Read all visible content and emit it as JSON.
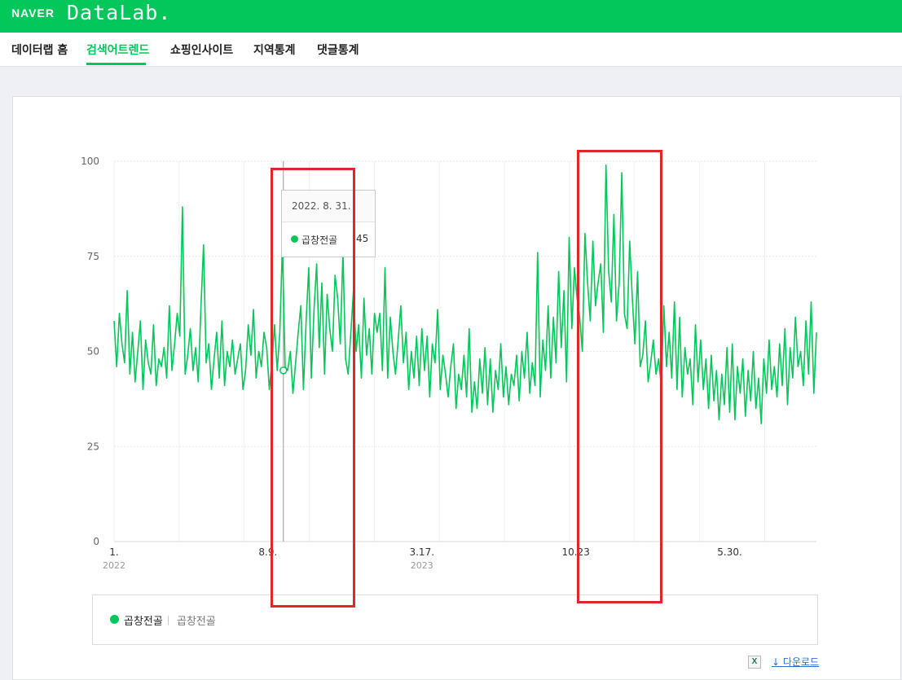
{
  "header": {
    "logo_naver": "NAVER",
    "logo_datalab": "DataLab."
  },
  "nav": {
    "items": [
      {
        "label": "데이터랩 홈"
      },
      {
        "label": "검색어트렌드"
      },
      {
        "label": "쇼핑인사이트"
      },
      {
        "label": "지역통계"
      },
      {
        "label": "댓글통계"
      }
    ],
    "active_index": 1
  },
  "tooltip": {
    "date": "2022. 8. 31.",
    "series": "곱창전골",
    "value": "45"
  },
  "legend": {
    "name": "곱창전골",
    "term": "곱창전골"
  },
  "download": {
    "label": "다운로드",
    "excel_glyph": "X"
  },
  "colors": {
    "brand": "#03c75a",
    "highlight": "#e0252b"
  },
  "chart_data": {
    "type": "line",
    "series": [
      {
        "name": "곱창전골",
        "x_start": "2022-01-01",
        "x_step_days": 7,
        "values": [
          58,
          46,
          60,
          52,
          47,
          66,
          44,
          55,
          42,
          50,
          58,
          40,
          53,
          47,
          44,
          57,
          41,
          48,
          46,
          51,
          43,
          62,
          45,
          52,
          60,
          54,
          88,
          44,
          49,
          56,
          45,
          51,
          42,
          61,
          78,
          47,
          52,
          40,
          48,
          55,
          43,
          58,
          41,
          50,
          46,
          53,
          44,
          48,
          52,
          40,
          45,
          57,
          49,
          61,
          43,
          50,
          46,
          55,
          51,
          40,
          47,
          57,
          45,
          55,
          78,
          46,
          45,
          50,
          39,
          47,
          55,
          62,
          40,
          58,
          72,
          43,
          61,
          73,
          51,
          68,
          44,
          65,
          56,
          50,
          70,
          64,
          52,
          76,
          48,
          44,
          55,
          66,
          50,
          57,
          43,
          64,
          49,
          56,
          44,
          60,
          55,
          60,
          45,
          72,
          43,
          59,
          50,
          44,
          53,
          62,
          47,
          55,
          40,
          50,
          43,
          54,
          41,
          56,
          45,
          54,
          38,
          52,
          47,
          61,
          40,
          49,
          44,
          38,
          46,
          52,
          35,
          44,
          40,
          49,
          38,
          56,
          34,
          42,
          35,
          48,
          39,
          51,
          36,
          48,
          34,
          45,
          40,
          52,
          38,
          46,
          36,
          44,
          41,
          49,
          37,
          50,
          43,
          55,
          39,
          47,
          41,
          76,
          38,
          53,
          45,
          62,
          43,
          59,
          47,
          71,
          51,
          66,
          42,
          80,
          56,
          72,
          64,
          59,
          50,
          81,
          68,
          58,
          79,
          62,
          68,
          73,
          55,
          99,
          71,
          63,
          86,
          58,
          68,
          97,
          60,
          56,
          79,
          64,
          52,
          71,
          46,
          49,
          58,
          42,
          47,
          53,
          44,
          48,
          41,
          62,
          46,
          55,
          43,
          63,
          40,
          59,
          38,
          51,
          44,
          48,
          36,
          57,
          42,
          53,
          40,
          48,
          35,
          49,
          37,
          45,
          32,
          44,
          36,
          51,
          34,
          52,
          32,
          46,
          39,
          48,
          33,
          45,
          37,
          50,
          35,
          43,
          31,
          48,
          39,
          53,
          40,
          46,
          38,
          52,
          41,
          56,
          36,
          51,
          43,
          59,
          46,
          50,
          41,
          58,
          44,
          63,
          39,
          55
        ]
      }
    ],
    "xtick_labels": [
      {
        "date": "2022-01-01",
        "label": "1.",
        "year": "2022"
      },
      {
        "date": "2022-08-09",
        "label": "8.9.",
        "year": ""
      },
      {
        "date": "2023-03-17",
        "label": "3.17.",
        "year": "2023"
      },
      {
        "date": "2023-10-23",
        "label": "10.23",
        "year": ""
      },
      {
        "date": "2024-05-30",
        "label": "5.30.",
        "year": ""
      }
    ],
    "y_ticks": [
      0,
      25,
      50,
      75,
      100
    ],
    "ylim": [
      0,
      100
    ],
    "xlim": [
      "2022-01-01",
      "2024-10-01"
    ],
    "grid": true,
    "legend_position": "bottom",
    "tooltip_date": "2022-08-31",
    "highlight_ranges": [
      {
        "from": "2022-08-15",
        "to": "2022-12-10"
      },
      {
        "from": "2023-10-27",
        "to": "2024-02-22"
      }
    ]
  }
}
